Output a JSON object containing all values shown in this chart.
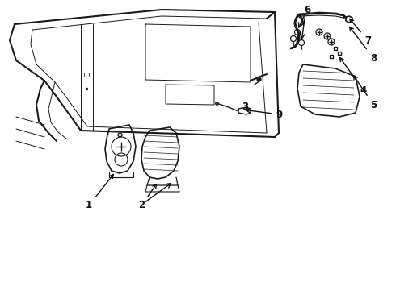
{
  "bg_color": "#ffffff",
  "line_color": "#1a1a1a",
  "label_color": "#111111",
  "fig_width": 4.9,
  "fig_height": 3.6,
  "dpi": 100,
  "arrow_color": "#111111",
  "lw_main": 1.3,
  "lw_thin": 0.7,
  "lw_body": 1.5,
  "label_fontsize": 8.5
}
